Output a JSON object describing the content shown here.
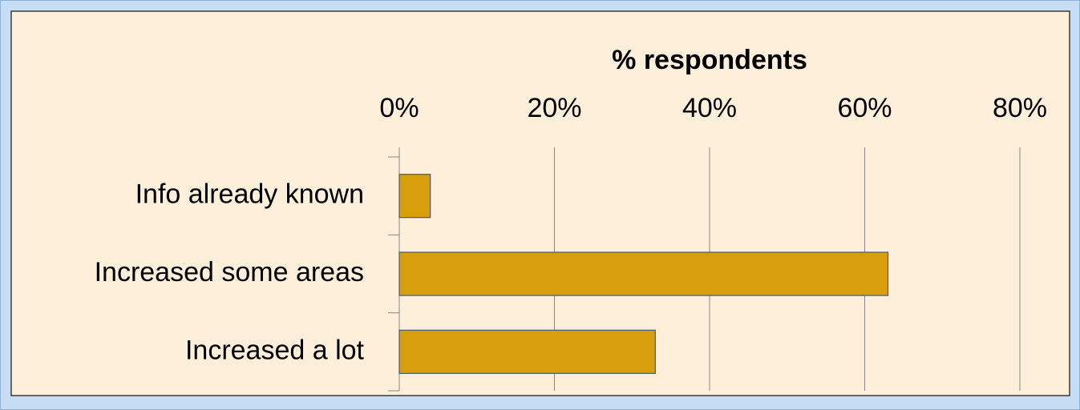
{
  "chart_data": {
    "type": "bar",
    "orientation": "horizontal",
    "x_label": "% respondents",
    "categories": [
      "Info already known",
      "Increased some areas",
      "Increased a lot"
    ],
    "values": [
      4,
      63,
      33
    ],
    "color": "#d99e0b",
    "xlim": [
      0,
      80
    ],
    "xticks": [
      {
        "value": 0,
        "label": "0%"
      },
      {
        "value": 20,
        "label": "20%"
      },
      {
        "value": 40,
        "label": "40%"
      },
      {
        "value": 60,
        "label": "60%"
      },
      {
        "value": 80,
        "label": "80%"
      }
    ],
    "grid": true
  }
}
